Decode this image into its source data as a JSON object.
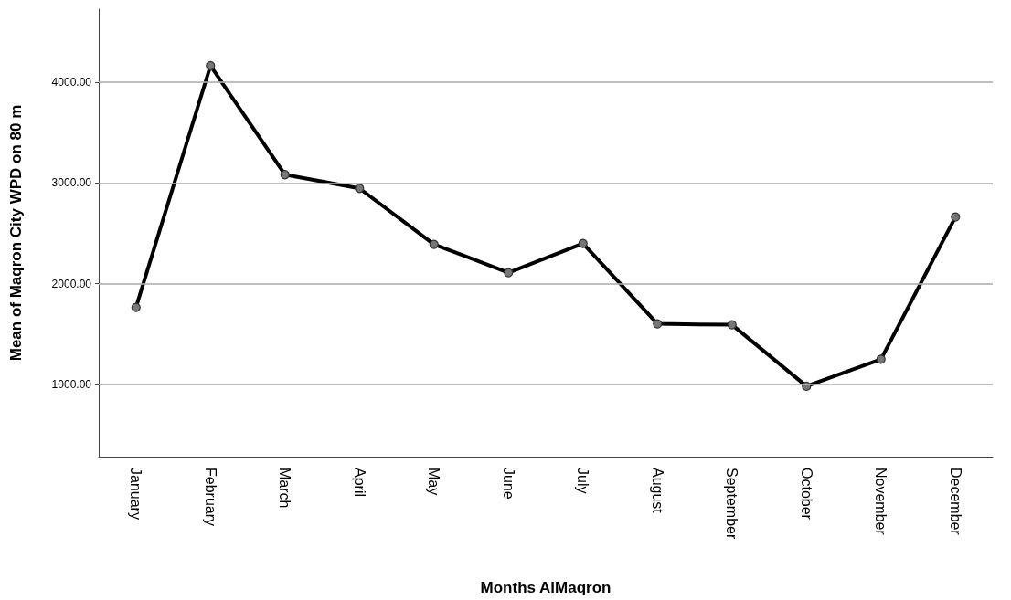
{
  "chart_data": {
    "type": "line",
    "xlabel": "Months AlMaqron",
    "ylabel": "Mean of Maqron City WPD on 80 m",
    "categories": [
      "January",
      "February",
      "March",
      "April",
      "May",
      "June",
      "July",
      "August",
      "September",
      "October",
      "November",
      "December"
    ],
    "series": [
      {
        "color": "#000000",
        "values": [
          1764,
          4163,
          3082,
          2946,
          2390,
          2109,
          2399,
          1601,
          1592,
          982,
          1250,
          2662
        ]
      }
    ],
    "ylim": [
      283,
      4725
    ],
    "yticks": [
      {
        "value": 1000,
        "label": "1000.00"
      },
      {
        "value": 2000,
        "label": "2000.00"
      },
      {
        "value": 3000,
        "label": "3000.00"
      },
      {
        "value": 4000,
        "label": "4000.00"
      }
    ],
    "grid": "y",
    "marker": "circle",
    "line_style": "solid"
  }
}
